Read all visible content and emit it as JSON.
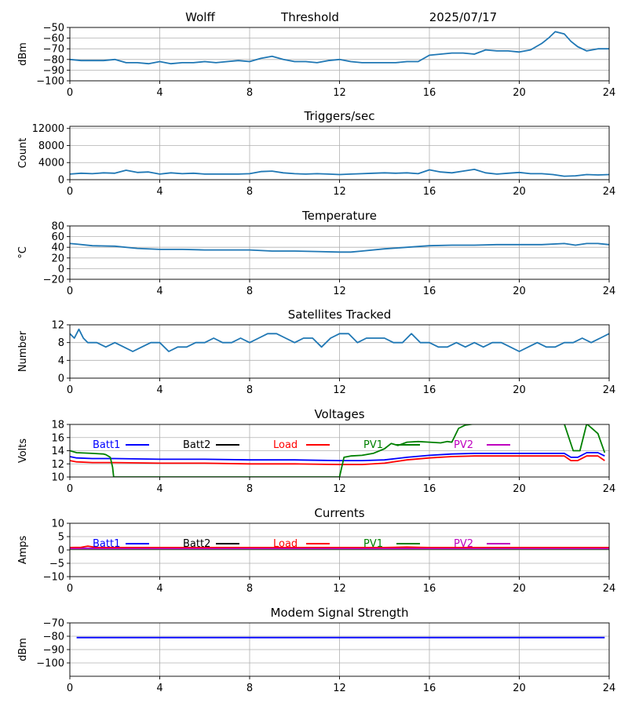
{
  "header": {
    "station": "Wolff",
    "mode": "Threshold",
    "date": "2025/07/17"
  },
  "chart_data": [
    {
      "id": "threshold",
      "type": "line",
      "title": "",
      "ylabel": "dBm",
      "ylim": [
        -100,
        -50
      ],
      "yticks": [
        -100,
        -90,
        -80,
        -70,
        -60,
        -50
      ],
      "xlim": [
        0,
        24
      ],
      "xticks": [
        0,
        4,
        8,
        12,
        16,
        20,
        24
      ],
      "grid": true,
      "series": [
        {
          "color": "#1f77b4",
          "x": [
            0,
            0.5,
            1,
            1.5,
            2,
            2.5,
            3,
            3.5,
            4,
            4.5,
            5,
            5.5,
            6,
            6.5,
            7,
            7.5,
            8,
            8.5,
            9,
            9.5,
            10,
            10.5,
            11,
            11.5,
            12,
            12.5,
            13,
            13.5,
            14,
            14.5,
            15,
            15.5,
            16,
            16.5,
            17,
            17.5,
            18,
            18.5,
            19,
            19.5,
            20,
            20.5,
            21,
            21.3,
            21.6,
            22,
            22.3,
            22.6,
            23,
            23.5,
            24
          ],
          "y": [
            -80,
            -81,
            -81,
            -81,
            -80,
            -83,
            -83,
            -84,
            -82,
            -84,
            -83,
            -83,
            -82,
            -83,
            -82,
            -81,
            -82,
            -79,
            -77,
            -80,
            -82,
            -82,
            -83,
            -81,
            -80,
            -82,
            -83,
            -83,
            -83,
            -83,
            -82,
            -82,
            -76,
            -75,
            -74,
            -74,
            -75,
            -71,
            -72,
            -72,
            -73,
            -71,
            -65,
            -60,
            -54,
            -56,
            -63,
            -68,
            -72,
            -70,
            -70
          ]
        }
      ]
    },
    {
      "id": "triggers",
      "type": "line",
      "title": "Triggers/sec",
      "ylabel": "Count",
      "ylim": [
        0,
        12500
      ],
      "yticks": [
        0,
        4000,
        8000,
        12000
      ],
      "xlim": [
        0,
        24
      ],
      "xticks": [
        0,
        4,
        8,
        12,
        16,
        20,
        24
      ],
      "grid": true,
      "series": [
        {
          "color": "#1f77b4",
          "x": [
            0,
            0.5,
            1,
            1.5,
            2,
            2.5,
            3,
            3.5,
            4,
            4.5,
            5,
            5.5,
            6,
            6.5,
            7,
            7.5,
            8,
            8.5,
            9,
            9.5,
            10,
            10.5,
            11,
            11.5,
            12,
            12.5,
            13,
            13.5,
            14,
            14.5,
            15,
            15.5,
            16,
            16.5,
            17,
            17.5,
            18,
            18.5,
            19,
            19.5,
            20,
            20.5,
            21,
            21.5,
            22,
            22.5,
            23,
            23.5,
            24
          ],
          "y": [
            1300,
            1500,
            1400,
            1600,
            1500,
            2200,
            1700,
            1800,
            1300,
            1600,
            1400,
            1500,
            1300,
            1300,
            1300,
            1300,
            1400,
            1900,
            2000,
            1600,
            1400,
            1300,
            1400,
            1300,
            1200,
            1300,
            1400,
            1500,
            1600,
            1500,
            1600,
            1400,
            2300,
            1800,
            1600,
            2000,
            2400,
            1600,
            1300,
            1500,
            1700,
            1400,
            1400,
            1200,
            800,
            900,
            1200,
            1100,
            1200
          ]
        }
      ]
    },
    {
      "id": "temperature",
      "type": "line",
      "title": "Temperature",
      "ylabel": "°C",
      "ylim": [
        -20,
        80
      ],
      "yticks": [
        -20,
        0,
        20,
        40,
        60,
        80
      ],
      "xlim": [
        0,
        24
      ],
      "xticks": [
        0,
        4,
        8,
        12,
        16,
        20,
        24
      ],
      "grid": true,
      "series": [
        {
          "color": "#1f77b4",
          "x": [
            0,
            0.3,
            1,
            2,
            3,
            4,
            5,
            6,
            7,
            8,
            9,
            10,
            11,
            12,
            12.5,
            13,
            14,
            15,
            16,
            17,
            18,
            19,
            20,
            21,
            22,
            22.5,
            23,
            23.5,
            24
          ],
          "y": [
            47,
            46,
            43,
            42,
            38,
            36,
            36,
            35,
            35,
            35,
            33,
            33,
            32,
            31,
            31,
            33,
            37,
            40,
            43,
            44,
            44,
            45,
            45,
            45,
            47,
            44,
            47,
            47,
            45
          ]
        }
      ]
    },
    {
      "id": "satellites",
      "type": "line",
      "title": "Satellites Tracked",
      "ylabel": "Number",
      "ylim": [
        0,
        12
      ],
      "yticks": [
        0,
        4,
        8,
        12
      ],
      "xlim": [
        0,
        24
      ],
      "xticks": [
        0,
        4,
        8,
        12,
        16,
        20,
        24
      ],
      "grid": true,
      "series": [
        {
          "color": "#1f77b4",
          "x": [
            0,
            0.2,
            0.4,
            0.6,
            0.8,
            1.2,
            1.6,
            2.0,
            2.4,
            2.8,
            3.2,
            3.6,
            4.0,
            4.4,
            4.8,
            5.2,
            5.6,
            6.0,
            6.4,
            6.8,
            7.2,
            7.6,
            8.0,
            8.4,
            8.8,
            9.2,
            9.6,
            10.0,
            10.4,
            10.8,
            11.2,
            11.6,
            12.0,
            12.4,
            12.8,
            13.2,
            13.6,
            14.0,
            14.4,
            14.8,
            15.2,
            15.6,
            16.0,
            16.4,
            16.8,
            17.2,
            17.6,
            18.0,
            18.4,
            18.8,
            19.2,
            19.6,
            20.0,
            20.4,
            20.8,
            21.2,
            21.6,
            22.0,
            22.4,
            22.8,
            23.2,
            23.6,
            24.0
          ],
          "y": [
            10,
            9,
            11,
            9,
            8,
            8,
            7,
            8,
            7,
            6,
            7,
            8,
            8,
            6,
            7,
            7,
            8,
            8,
            9,
            8,
            8,
            9,
            8,
            9,
            10,
            10,
            9,
            8,
            9,
            9,
            7,
            9,
            10,
            10,
            8,
            9,
            9,
            9,
            8,
            8,
            10,
            8,
            8,
            7,
            7,
            8,
            7,
            8,
            7,
            8,
            8,
            7,
            6,
            7,
            8,
            7,
            7,
            8,
            8,
            9,
            8,
            9,
            10
          ]
        }
      ]
    },
    {
      "id": "voltages",
      "type": "line",
      "title": "Voltages",
      "ylabel": "Volts",
      "ylim": [
        10,
        18
      ],
      "yticks": [
        10,
        12,
        14,
        16,
        18
      ],
      "xlim": [
        0,
        24
      ],
      "xticks": [
        0,
        4,
        8,
        12,
        16,
        20,
        24
      ],
      "grid": true,
      "legend_placement": "top",
      "series": [
        {
          "name": "Batt1",
          "color": "#0000ff",
          "x": [
            0,
            0.3,
            1,
            2,
            4,
            6,
            8,
            10,
            12,
            13,
            14,
            15,
            16,
            17,
            18,
            20,
            22,
            22.3,
            22.6,
            23,
            23.5,
            23.8
          ],
          "y": [
            13.1,
            12.9,
            12.8,
            12.8,
            12.7,
            12.7,
            12.6,
            12.6,
            12.5,
            12.5,
            12.6,
            13,
            13.3,
            13.5,
            13.6,
            13.6,
            13.6,
            13.0,
            13.0,
            13.7,
            13.7,
            13.2
          ]
        },
        {
          "name": "Batt2",
          "color": "#000000",
          "x": [],
          "y": []
        },
        {
          "name": "Load",
          "color": "#ff0000",
          "x": [
            0,
            0.3,
            1,
            2,
            4,
            6,
            8,
            10,
            12,
            13,
            14,
            15,
            16,
            17,
            18,
            20,
            22,
            22.3,
            22.6,
            23,
            23.5,
            23.8
          ],
          "y": [
            12.5,
            12.3,
            12.2,
            12.2,
            12.1,
            12.1,
            12.0,
            12.0,
            11.9,
            11.9,
            12.1,
            12.6,
            12.9,
            13.1,
            13.2,
            13.2,
            13.2,
            12.5,
            12.5,
            13.2,
            13.2,
            12.5
          ]
        },
        {
          "name": "PV1",
          "color": "#008000",
          "x": [
            0,
            0.3,
            1,
            1.5,
            1.6,
            1.8,
            1.9,
            1.95,
            12.0,
            12.2,
            12.5,
            13.0,
            13.5,
            14.0,
            14.3,
            14.6,
            15.0,
            15.5,
            16.0,
            16.5,
            16.8,
            17.0,
            17.3,
            17.6,
            18.0,
            22.0,
            22.4,
            22.7,
            23.0,
            23.5,
            23.8
          ],
          "y": [
            14.0,
            13.7,
            13.6,
            13.5,
            13.4,
            13.0,
            11.5,
            10.0,
            10.0,
            13.0,
            13.2,
            13.3,
            13.6,
            14.3,
            15.1,
            14.8,
            15.3,
            15.4,
            15.3,
            15.2,
            15.4,
            15.3,
            17.4,
            17.9,
            18.1,
            18.1,
            14.0,
            14.0,
            18.1,
            16.6,
            13.7
          ]
        },
        {
          "name": "PV2",
          "color": "#bf00bf",
          "x": [],
          "y": []
        }
      ]
    },
    {
      "id": "currents",
      "type": "line",
      "title": "Currents",
      "ylabel": "Amps",
      "ylim": [
        -10,
        10
      ],
      "yticks": [
        -10,
        -5,
        0,
        5,
        10
      ],
      "xlim": [
        0,
        24
      ],
      "xticks": [
        0,
        4,
        8,
        12,
        16,
        20,
        24
      ],
      "grid": true,
      "legend_placement": "top",
      "series": [
        {
          "name": "Batt1",
          "color": "#0000ff",
          "x": [
            0,
            24
          ],
          "y": [
            0.6,
            0.6
          ]
        },
        {
          "name": "Batt2",
          "color": "#000000",
          "x": [],
          "y": []
        },
        {
          "name": "Load",
          "color": "#ff0000",
          "x": [
            0,
            0.5,
            0.8,
            1.2,
            2,
            6,
            10,
            14,
            15,
            15.5,
            16,
            20,
            24
          ],
          "y": [
            0.9,
            1.0,
            1.4,
            0.9,
            0.9,
            0.9,
            0.9,
            0.9,
            1.1,
            1.0,
            0.9,
            0.9,
            0.9
          ]
        },
        {
          "name": "PV1",
          "color": "#008000",
          "x": [
            0,
            24
          ],
          "y": [
            0.3,
            0.3
          ]
        },
        {
          "name": "PV2",
          "color": "#bf00bf",
          "x": [
            0,
            24
          ],
          "y": [
            0.5,
            0.5
          ]
        }
      ]
    },
    {
      "id": "modem",
      "type": "line",
      "title": "Modem Signal Strength",
      "ylabel": "dBm",
      "ylim": [
        -110,
        -70
      ],
      "yticks": [
        -100,
        -90,
        -80,
        -70
      ],
      "xlim": [
        0,
        24
      ],
      "xticks": [
        0,
        4,
        8,
        12,
        16,
        20,
        24
      ],
      "grid": true,
      "series": [
        {
          "color": "#0000ff",
          "x": [
            0.3,
            23.8
          ],
          "y": [
            -81,
            -81
          ]
        }
      ]
    }
  ]
}
